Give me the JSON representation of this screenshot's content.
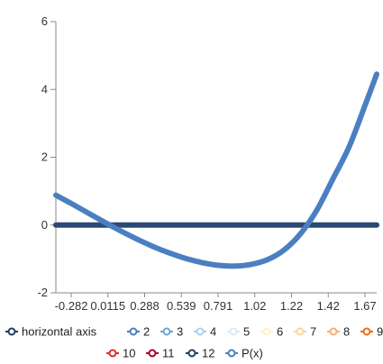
{
  "chart_data": {
    "type": "line",
    "title": "",
    "xlabel": "",
    "ylabel": "",
    "x_tick_labels": [
      "-0.282",
      "0.0115",
      "0.288",
      "0.539",
      "0.791",
      "1.02",
      "1.22",
      "1.42",
      "1.67"
    ],
    "y_ticks": [
      -2,
      0,
      2,
      4,
      6
    ],
    "ylim": [
      -2,
      6
    ],
    "xlim": [
      -0.3,
      1.67
    ],
    "grid": false,
    "legend": "bottom",
    "legend_items": [
      {
        "label": "horizontal axis",
        "color": "#1f3d66"
      },
      {
        "label": "2",
        "color": "#4a7fc1"
      },
      {
        "label": "3",
        "color": "#6aa6d8"
      },
      {
        "label": "4",
        "color": "#a9d3ee"
      },
      {
        "label": "5",
        "color": "#d8ecf8"
      },
      {
        "label": "6",
        "color": "#fff1c1"
      },
      {
        "label": "7",
        "color": "#fdd49e"
      },
      {
        "label": "8",
        "color": "#fdae6b"
      },
      {
        "label": "9",
        "color": "#f16913"
      },
      {
        "label": "10",
        "color": "#d73027"
      },
      {
        "label": "11",
        "color": "#a50026"
      },
      {
        "label": "12",
        "color": "#1f3d66"
      },
      {
        "label": "P(x)",
        "color": "#4a7fc1"
      }
    ],
    "series": [
      {
        "name": "horizontal axis",
        "color": "#2b4a73",
        "x": [
          -0.3,
          1.67
        ],
        "y": [
          0,
          0
        ]
      },
      {
        "name": "P(x)",
        "color": "#4a7fc1",
        "x": [
          -0.3,
          -0.2,
          -0.1,
          0.0,
          0.1,
          0.2,
          0.3,
          0.4,
          0.5,
          0.6,
          0.7,
          0.8,
          0.9,
          1.0,
          1.1,
          1.2,
          1.3,
          1.4,
          1.5,
          1.6,
          1.67
        ],
        "y": [
          0.88,
          0.62,
          0.35,
          0.08,
          -0.18,
          -0.42,
          -0.64,
          -0.83,
          -0.99,
          -1.11,
          -1.19,
          -1.21,
          -1.16,
          -1.02,
          -0.74,
          -0.27,
          0.42,
          1.35,
          2.3,
          3.55,
          4.45
        ]
      }
    ]
  }
}
